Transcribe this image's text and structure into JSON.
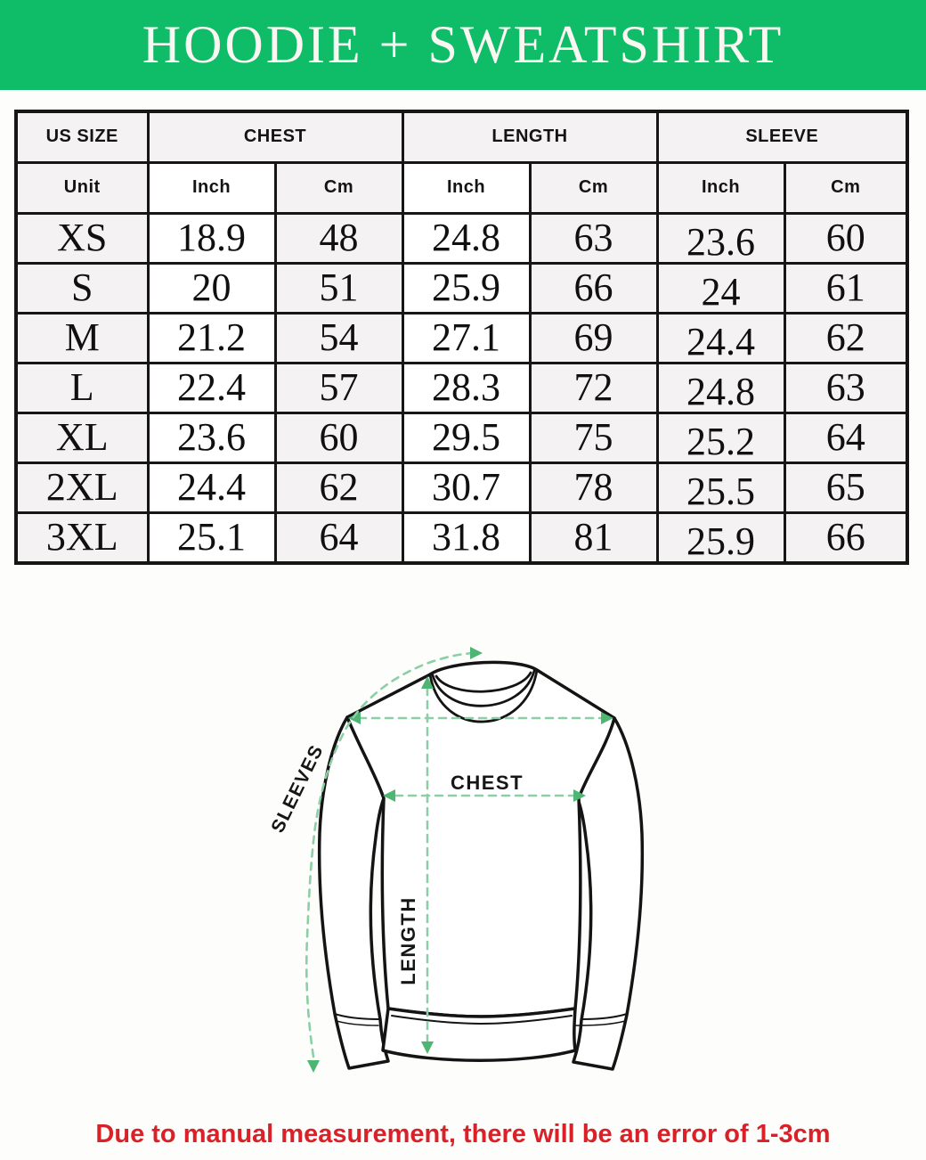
{
  "banner": {
    "title": "HOODIE + SWEATSHIRT"
  },
  "colors": {
    "banner_bg": "#0fbd69",
    "banner_text": "#faf7f2",
    "table_border": "#161616",
    "cell_bg": "#f4f2f3",
    "cell_white": "#ffffff",
    "note_color": "#da2128",
    "dash_green": "#8ccfa4",
    "arrow_green": "#4eb573",
    "ink": "#141414",
    "garment_fill": "#ffffff"
  },
  "size_table": {
    "groups": [
      {
        "label": "US SIZE",
        "span": 1
      },
      {
        "label": "CHEST",
        "span": 2
      },
      {
        "label": "LENGTH",
        "span": 2
      },
      {
        "label": "SLEEVE",
        "span": 2
      }
    ],
    "unit_row": [
      "Unit",
      "Inch",
      "Cm",
      "Inch",
      "Cm",
      "Inch",
      "Cm"
    ],
    "rows": [
      [
        "XS",
        "18.9",
        "48",
        "24.8",
        "63",
        "23.6",
        "60"
      ],
      [
        "S",
        "20",
        "51",
        "25.9",
        "66",
        "24",
        "61"
      ],
      [
        "M",
        "21.2",
        "54",
        "27.1",
        "69",
        "24.4",
        "62"
      ],
      [
        "L",
        "22.4",
        "57",
        "28.3",
        "72",
        "24.8",
        "63"
      ],
      [
        "XL",
        "23.6",
        "60",
        "29.5",
        "75",
        "25.2",
        "64"
      ],
      [
        "2XL",
        "24.4",
        "62",
        "30.7",
        "78",
        "25.5",
        "65"
      ],
      [
        "3XL",
        "25.1",
        "64",
        "31.8",
        "81",
        "25.9",
        "66"
      ]
    ]
  },
  "diagram": {
    "labels": {
      "chest": "CHEST",
      "length": "LENGTH",
      "sleeves": "SLEEVES"
    }
  },
  "note": {
    "text": "Due to manual measurement, there will be an error of 1-3cm"
  }
}
